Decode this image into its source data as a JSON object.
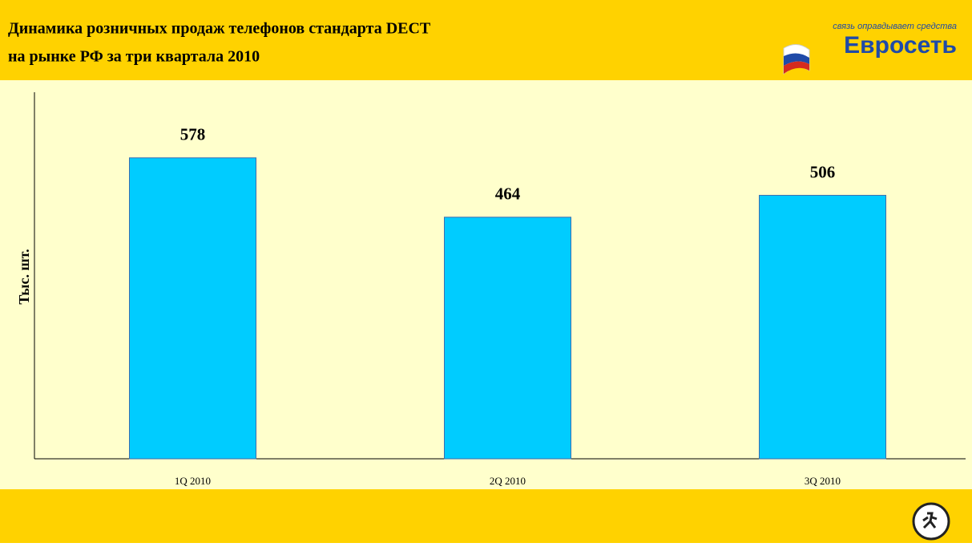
{
  "chart_data": {
    "type": "bar",
    "title": [
      "Динамика розничных продаж телефонов стандарта DECT",
      "на рынке РФ за три квартала 2010"
    ],
    "ylabel": "Тыс. шт.",
    "categories": [
      "1Q 2010",
      "2Q 2010",
      "3Q 2010"
    ],
    "values": [
      578,
      464,
      506
    ],
    "color": "#00ccff",
    "ylim": [
      0,
      704
    ]
  },
  "logo": {
    "tagline": "связь оправдывает средства",
    "name": "Евросеть"
  }
}
